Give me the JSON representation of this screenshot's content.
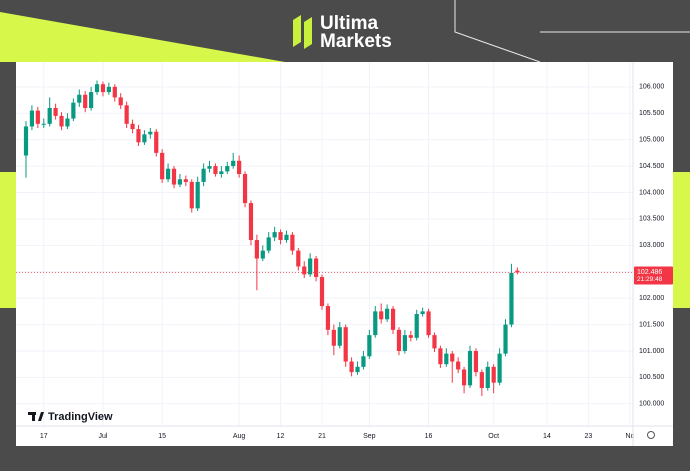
{
  "brand": {
    "line1": "Ultima",
    "line2": "Markets"
  },
  "chart_data": {
    "type": "candlestick",
    "watermark": "TradingView",
    "up_color": "#089981",
    "down_color": "#f23645",
    "grid": true,
    "ylim": [
      99.58,
      106.47
    ],
    "yticks": [
      {
        "value": 100,
        "label": "100.000"
      },
      {
        "value": 100.5,
        "label": "100.500"
      },
      {
        "value": 101,
        "label": "101.000"
      },
      {
        "value": 101.5,
        "label": "101.500"
      },
      {
        "value": 102,
        "label": "102.000"
      },
      {
        "value": 102.5,
        "label": "102.500"
      },
      {
        "value": 103,
        "label": "103.000"
      },
      {
        "value": 103.5,
        "label": "103.500"
      },
      {
        "value": 104,
        "label": "104.000"
      },
      {
        "value": 104.5,
        "label": "104.500"
      },
      {
        "value": 105,
        "label": "105.000"
      },
      {
        "value": 105.5,
        "label": "105.500"
      },
      {
        "value": 106,
        "label": "106.000"
      }
    ],
    "last_price": 102.486,
    "countdown": "21:29:48",
    "categories": [
      null,
      null,
      null,
      "17",
      null,
      null,
      null,
      null,
      null,
      null,
      null,
      null,
      null,
      "Jul",
      null,
      null,
      null,
      null,
      null,
      null,
      null,
      null,
      null,
      "15",
      null,
      null,
      null,
      null,
      null,
      null,
      null,
      null,
      null,
      null,
      null,
      null,
      "Aug",
      null,
      null,
      null,
      null,
      null,
      null,
      "12",
      null,
      null,
      null,
      null,
      null,
      null,
      "21",
      null,
      null,
      null,
      null,
      null,
      null,
      null,
      "Sep",
      null,
      null,
      null,
      null,
      null,
      null,
      null,
      null,
      null,
      "16",
      null,
      null,
      null,
      null,
      null,
      null,
      null,
      null,
      null,
      null,
      "Oct",
      null,
      null,
      null,
      null,
      null,
      null,
      null,
      null,
      "14",
      null,
      null,
      null,
      null,
      null,
      null,
      "23",
      null,
      null,
      null,
      null,
      null,
      null,
      "Nc",
      null
    ],
    "open": [
      104.7,
      105.25,
      105.55,
      105.3,
      105.3,
      105.6,
      105.45,
      105.25,
      105.4,
      105.7,
      105.85,
      105.6,
      105.9,
      106.05,
      105.9,
      106,
      105.8,
      105.65,
      105.3,
      105.2,
      104.95,
      105.1,
      105.15,
      104.75,
      104.25,
      104.45,
      104.15,
      104.25,
      104.2,
      103.7,
      104.2,
      104.45,
      104.5,
      104.35,
      104.4,
      104.5,
      104.6,
      104.35,
      103.8,
      103.1,
      102.75,
      102.9,
      103.15,
      103.25,
      103.1,
      103.2,
      102.9,
      102.6,
      102.45,
      102.75,
      102.4,
      101.85,
      101.4,
      101.1,
      101.45,
      100.8,
      100.6,
      100.7,
      100.9,
      101.3,
      101.75,
      101.6,
      101.8,
      101.4,
      101,
      101.3,
      101.25,
      101.7,
      101.75,
      101.3,
      101.05,
      100.75,
      100.95,
      100.8,
      100.65,
      100.35,
      101,
      100.6,
      100.3,
      100.7,
      100.4,
      100.95,
      101.5,
      102.52,
      null,
      null,
      null,
      null,
      null,
      null,
      null,
      null,
      null,
      null,
      null,
      null,
      null,
      null,
      null,
      null,
      null,
      null,
      null,
      null
    ],
    "high": [
      105.35,
      105.65,
      105.62,
      105.4,
      105.8,
      105.68,
      105.52,
      105.5,
      105.78,
      105.95,
      105.92,
      106,
      106.12,
      106.1,
      106.08,
      106.05,
      105.88,
      105.72,
      105.38,
      105.28,
      105.18,
      105.22,
      105.2,
      104.82,
      104.55,
      104.5,
      104.35,
      104.32,
      104.25,
      104.3,
      104.55,
      104.6,
      104.55,
      104.5,
      104.58,
      104.75,
      104.7,
      104.4,
      103.85,
      103.2,
      103,
      103.25,
      103.35,
      103.3,
      103.28,
      103.25,
      102.95,
      102.7,
      102.85,
      102.8,
      102.45,
      101.9,
      101.5,
      101.55,
      101.5,
      100.88,
      100.8,
      101,
      101.4,
      101.85,
      101.9,
      101.88,
      101.85,
      101.45,
      101.4,
      101.38,
      101.78,
      101.82,
      101.8,
      101.35,
      101.1,
      101.05,
      101,
      100.88,
      100.7,
      101.1,
      101.05,
      100.65,
      100.8,
      100.75,
      101.05,
      101.6,
      102.65,
      102.58,
      null,
      null,
      null,
      null,
      null,
      null,
      null,
      null,
      null,
      null,
      null,
      null,
      null,
      null,
      null,
      null,
      null,
      null,
      null,
      null
    ],
    "low": [
      104.28,
      105.18,
      105.22,
      105.22,
      105.25,
      105.38,
      105.18,
      105.2,
      105.35,
      105.62,
      105.52,
      105.55,
      105.85,
      105.82,
      105.85,
      105.72,
      105.58,
      105.22,
      105.12,
      104.88,
      104.9,
      105.02,
      104.68,
      104.18,
      104.2,
      104.08,
      104.1,
      104.12,
      103.62,
      103.65,
      104.12,
      104.38,
      104.3,
      104.28,
      104.35,
      104.45,
      104.28,
      103.72,
      103,
      102.15,
      102.7,
      102.85,
      103.08,
      103.02,
      103.05,
      102.82,
      102.52,
      102.38,
      102.4,
      102.32,
      101.78,
      101.3,
      100.92,
      101.05,
      100.7,
      100.52,
      100.55,
      100.65,
      100.85,
      101.25,
      101.52,
      101.55,
      101.32,
      100.92,
      100.95,
      101.18,
      101.2,
      101.65,
      101.25,
      100.98,
      100.68,
      100.7,
      100.4,
      100.58,
      100.2,
      100.3,
      100.52,
      100.15,
      100.25,
      100.2,
      100.35,
      100.9,
      101.45,
      102.45,
      null,
      null,
      null,
      null,
      null,
      null,
      null,
      null,
      null,
      null,
      null,
      null,
      null,
      null,
      null,
      null,
      null,
      null,
      null,
      null
    ],
    "close": [
      105.25,
      105.55,
      105.3,
      105.3,
      105.6,
      105.45,
      105.25,
      105.4,
      105.7,
      105.85,
      105.6,
      105.9,
      106.05,
      105.9,
      106,
      105.8,
      105.65,
      105.3,
      105.2,
      104.95,
      105.1,
      105.15,
      104.75,
      104.25,
      104.45,
      104.15,
      104.25,
      104.2,
      103.7,
      104.2,
      104.45,
      104.5,
      104.35,
      104.4,
      104.5,
      104.6,
      104.35,
      103.8,
      103.1,
      102.75,
      102.9,
      103.15,
      103.25,
      103.1,
      103.2,
      102.9,
      102.6,
      102.45,
      102.75,
      102.4,
      101.85,
      101.4,
      101.1,
      101.45,
      100.8,
      100.6,
      100.7,
      100.9,
      101.3,
      101.75,
      101.6,
      101.8,
      101.4,
      101,
      101.3,
      101.25,
      101.7,
      101.75,
      101.3,
      101.05,
      100.75,
      100.95,
      100.8,
      100.65,
      100.35,
      101,
      100.6,
      100.3,
      100.7,
      100.4,
      100.95,
      101.5,
      102.48,
      102.486,
      null,
      null,
      null,
      null,
      null,
      null,
      null,
      null,
      null,
      null,
      null,
      null,
      null,
      null,
      null,
      null,
      null,
      null,
      null,
      null
    ]
  }
}
